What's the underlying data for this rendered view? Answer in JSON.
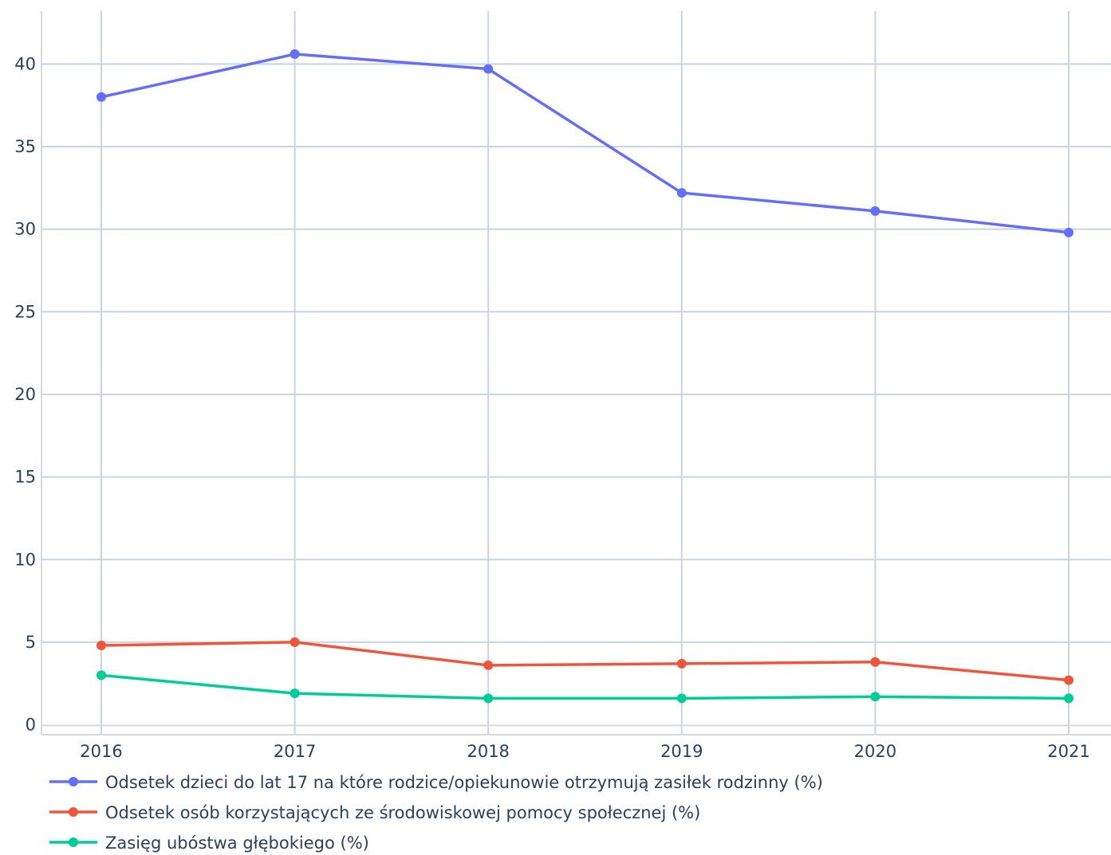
{
  "chart_data": {
    "type": "line",
    "title": "",
    "xlabel": "",
    "ylabel": "",
    "x": [
      "2016",
      "2017",
      "2018",
      "2019",
      "2020",
      "2021"
    ],
    "ylim": [
      -0.6,
      43.2
    ],
    "yticks": [
      0,
      5,
      10,
      15,
      20,
      25,
      30,
      35,
      40
    ],
    "ytick_labels": [
      "0",
      "5",
      "10",
      "15",
      "20",
      "25",
      "30",
      "35",
      "40"
    ],
    "grid": true,
    "legend_position": "bottom-left",
    "series": [
      {
        "name": "Odsetek dzieci do lat 17 na które rodzice/opiekunowie otrzymują zasiłek rodzinny (%)",
        "color": "#636efa",
        "values": [
          38.0,
          40.6,
          39.7,
          32.2,
          31.1,
          29.8
        ]
      },
      {
        "name": "Odsetek osób korzystających ze środowiskowej pomocy społecznej (%)",
        "color": "#ef553b",
        "values": [
          4.8,
          5.0,
          3.6,
          3.7,
          3.8,
          2.7
        ]
      },
      {
        "name": "Zasięg ubóstwa głębokiego (%)",
        "color": "#00cc96",
        "values": [
          3.0,
          1.9,
          1.6,
          1.6,
          1.7,
          1.6
        ]
      }
    ],
    "colors": {
      "grid": "#c8d4e3",
      "axis": "#d9d9d9",
      "text": "#2a3f5f"
    }
  }
}
